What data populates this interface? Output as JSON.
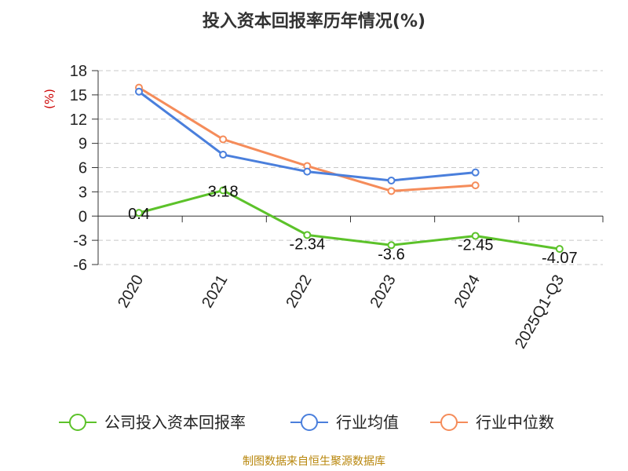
{
  "chart_data": {
    "type": "line",
    "title": "投入资本回报率历年情况(%)",
    "ylabel": "(%)",
    "xlabel": "",
    "categories": [
      "2020",
      "2021",
      "2022",
      "2023",
      "2024",
      "2025Q1-Q3"
    ],
    "ylim": [
      -6,
      18
    ],
    "yticks": [
      18,
      15,
      12,
      9,
      6,
      3,
      0,
      -3,
      -6
    ],
    "grid": true,
    "legend_position": "bottom",
    "series": [
      {
        "name": "公司投入资本回报率",
        "color": "#5cc22a",
        "values": [
          0.4,
          3.18,
          -2.34,
          -3.6,
          -2.45,
          -4.07
        ],
        "labels": [
          "0.4",
          "3.18",
          "-2.34",
          "-3.6",
          "-2.45",
          "-4.07"
        ]
      },
      {
        "name": "行业均值",
        "color": "#4a7fdc",
        "values": [
          15.4,
          7.6,
          5.5,
          4.4,
          5.4,
          null
        ]
      },
      {
        "name": "行业中位数",
        "color": "#f58c5a",
        "values": [
          15.9,
          9.5,
          6.2,
          3.1,
          3.8,
          null
        ]
      }
    ]
  },
  "source": "制图数据来自恒生聚源数据库"
}
